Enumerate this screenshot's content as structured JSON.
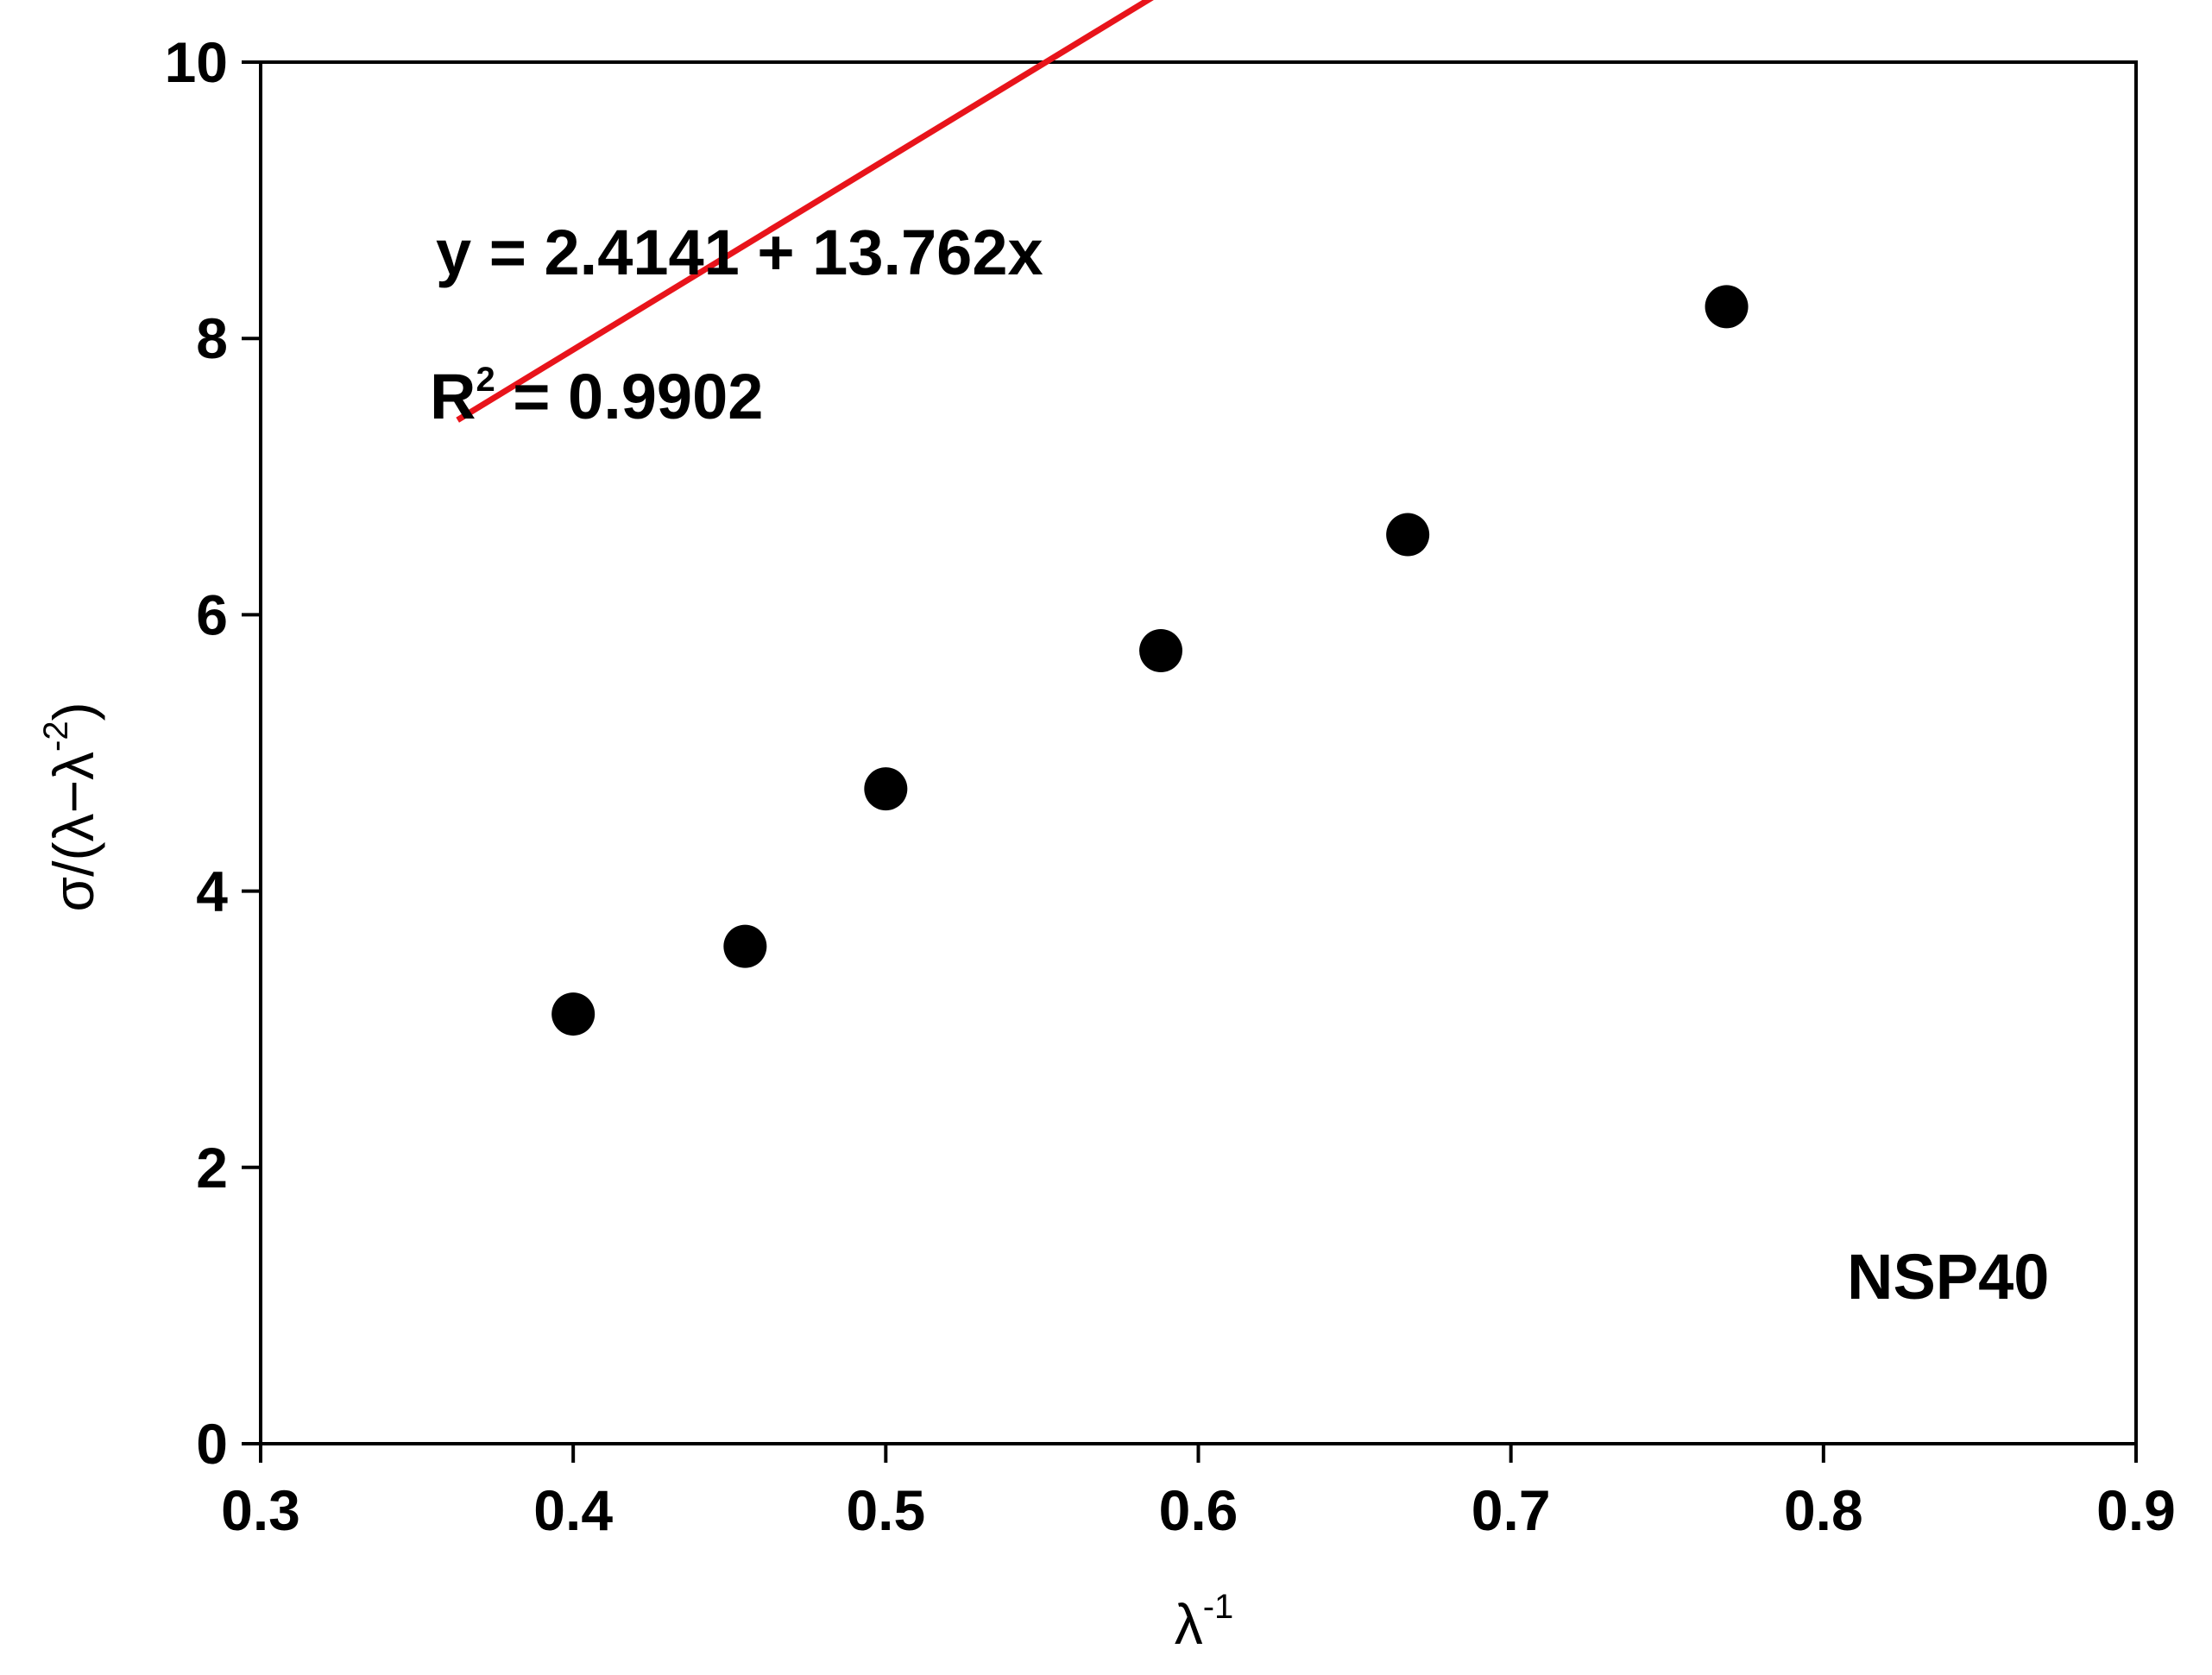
{
  "chart_data": {
    "type": "scatter",
    "xlabel": "λ",
    "xlabel_sup": "-1",
    "ylabel": "σ/(λ−λ",
    "ylabel_sup": "-2",
    "ylabel_close": ")",
    "xlim": [
      0.3,
      0.9
    ],
    "ylim": [
      0,
      10
    ],
    "x_ticks": [
      0.3,
      0.4,
      0.5,
      0.6,
      0.7,
      0.8,
      0.9
    ],
    "x_tick_labels": [
      "0.3",
      "0.4",
      "0.5",
      "0.6",
      "0.7",
      "0.8",
      "0.9"
    ],
    "y_ticks": [
      0,
      2,
      4,
      6,
      8,
      10
    ],
    "y_tick_labels": [
      "0",
      "2",
      "4",
      "6",
      "8",
      "10"
    ],
    "grid": false,
    "series": [
      {
        "type": "scatter",
        "color": "#000000",
        "x": [
          0.4,
          0.455,
          0.5,
          0.588,
          0.667,
          0.769
        ],
        "y": [
          3.11,
          3.6,
          4.74,
          5.74,
          6.58,
          8.23
        ]
      }
    ],
    "fit_line": {
      "color": "#e8141b",
      "intercept": 2.4141,
      "slope": 13.762,
      "x_range": [
        0.363,
        0.806
      ]
    },
    "annotations": {
      "equation": "y = 2.4141 + 13.762x",
      "r2_prefix": "R",
      "r2_sup": "2",
      "r2_value": " = 0.9902",
      "sample": "NSP40"
    }
  }
}
